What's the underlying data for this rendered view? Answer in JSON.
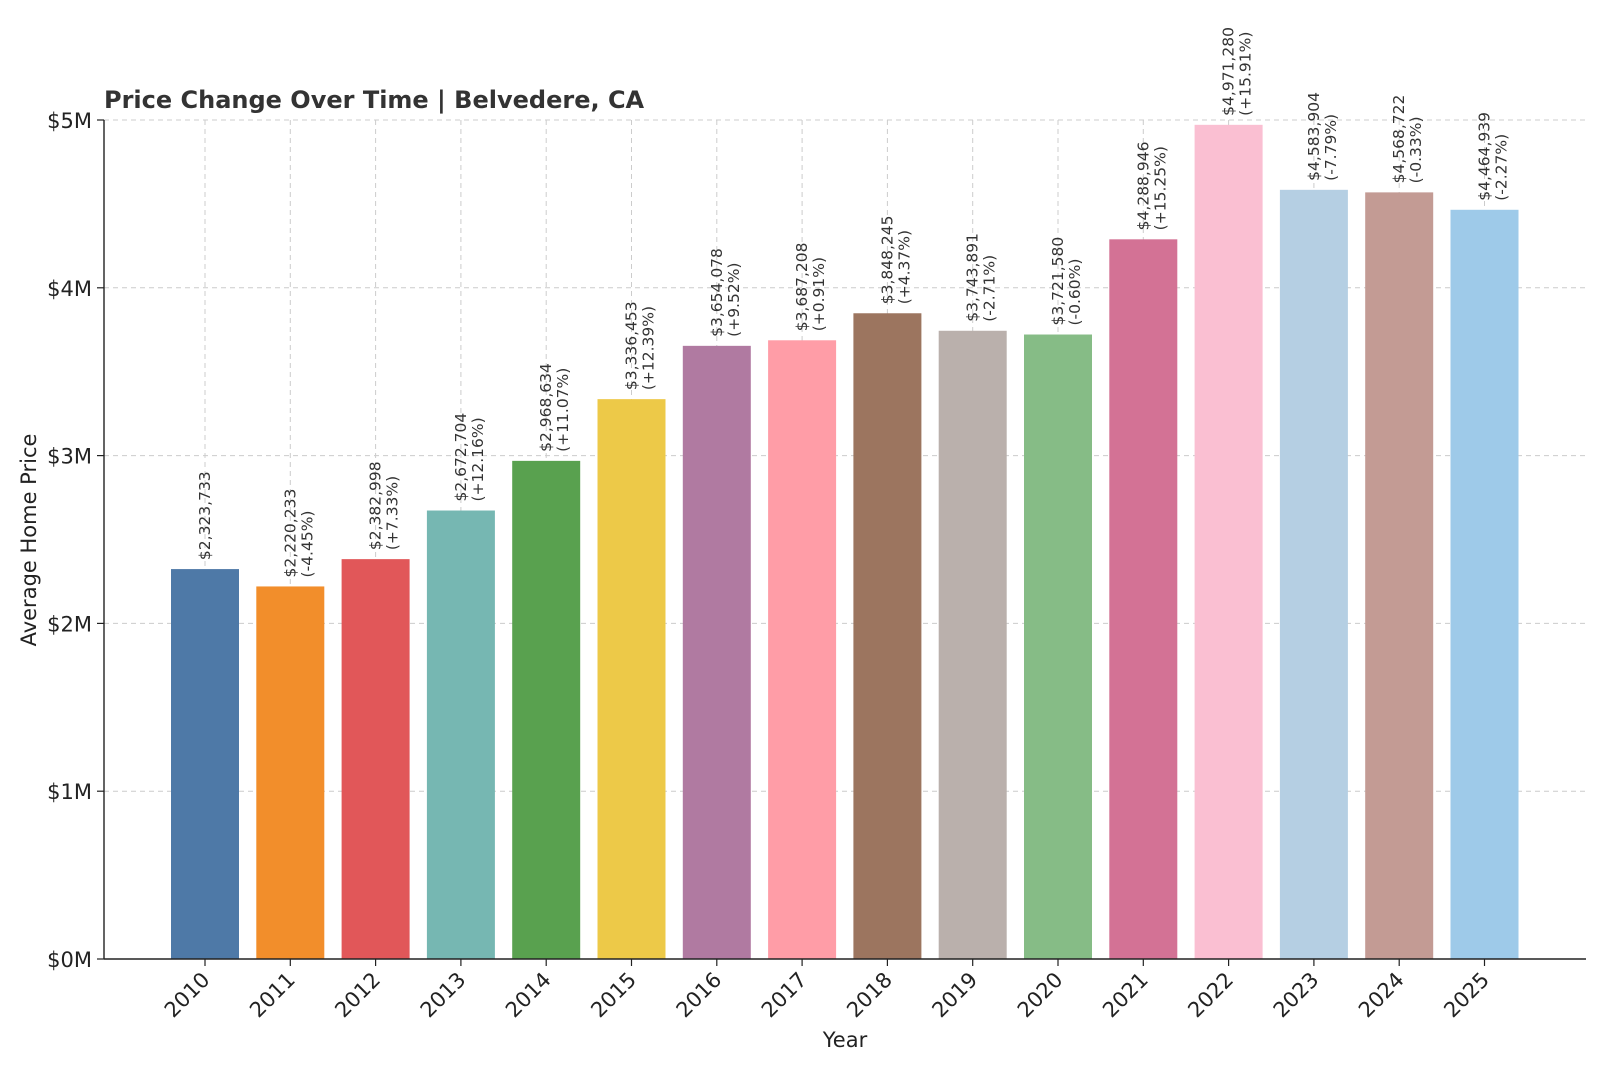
{
  "chart_data": {
    "type": "bar",
    "title": "Price Change Over Time | Belvedere, CA",
    "xlabel": "Year",
    "ylabel": "Average Home Price",
    "ylim": [
      0,
      5000000
    ],
    "yticks": [
      {
        "value": 0,
        "label": "$0M"
      },
      {
        "value": 1000000,
        "label": "$1M"
      },
      {
        "value": 2000000,
        "label": "$2M"
      },
      {
        "value": 3000000,
        "label": "$3M"
      },
      {
        "value": 4000000,
        "label": "$4M"
      },
      {
        "value": 5000000,
        "label": "$5M"
      }
    ],
    "grid": true,
    "categories": [
      "2010",
      "2011",
      "2012",
      "2013",
      "2014",
      "2015",
      "2016",
      "2017",
      "2018",
      "2019",
      "2020",
      "2021",
      "2022",
      "2023",
      "2024",
      "2025"
    ],
    "values": [
      2323733,
      2220233,
      2382998,
      2672704,
      2968634,
      3336453,
      3654078,
      3687208,
      3848245,
      3743891,
      3721580,
      4288946,
      4971280,
      4583904,
      4568722,
      4464939
    ],
    "value_labels": [
      "$2,323,733",
      "$2,220,233",
      "$2,382,998",
      "$2,672,704",
      "$2,968,634",
      "$3,336,453",
      "$3,654,078",
      "$3,687,208",
      "$3,848,245",
      "$3,743,891",
      "$3,721,580",
      "$4,288,946",
      "$4,971,280",
      "$4,583,904",
      "$4,568,722",
      "$4,464,939"
    ],
    "change_labels": [
      "",
      "(-4.45%)",
      "(+7.33%)",
      "(+12.16%)",
      "(+11.07%)",
      "(+12.39%)",
      "(+9.52%)",
      "(+0.91%)",
      "(+4.37%)",
      "(-2.71%)",
      "(-0.60%)",
      "(+15.25%)",
      "(+15.91%)",
      "(-7.79%)",
      "(-0.33%)",
      "(-2.27%)"
    ],
    "colors": [
      "#4e79a7",
      "#f28e2b",
      "#e15759",
      "#76b7b2",
      "#59a14f",
      "#edc948",
      "#b07aa1",
      "#ff9da7",
      "#9c755f",
      "#bab0ac",
      "#86bc86",
      "#d37295",
      "#fabfd2",
      "#b5cfe3",
      "#c39b94",
      "#9ecae9"
    ]
  }
}
